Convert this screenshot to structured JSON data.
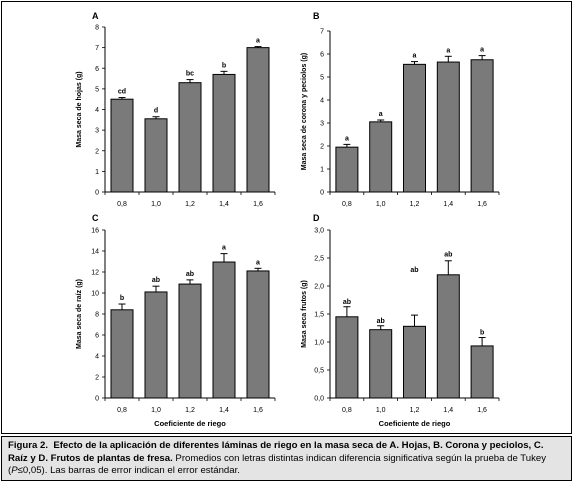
{
  "caption": {
    "label": "Figura 2.",
    "text_bold": "Efecto de la aplicación de diferentes láminas de riego en la masa seca de A. Hojas, B. Corona y peciolos, C. Raíz y D. Frutos de plantas de fresa.",
    "text_normal_1": "Promedios con letras distintas indican diferencia significativa según la prueba de Tukey (",
    "text_italic": "P",
    "text_normal_2": "≤0,05). Las barras de error indican el error estándar."
  },
  "chart_data": [
    {
      "panel": "A",
      "type": "bar",
      "categories": [
        "0,8",
        "1,0",
        "1,2",
        "1,4",
        "1,6"
      ],
      "values": [
        4.5,
        3.55,
        5.3,
        5.7,
        7.0
      ],
      "errors": [
        0.08,
        0.1,
        0.15,
        0.15,
        0.05
      ],
      "letters": [
        "cd",
        "d",
        "bc",
        "b",
        "a"
      ],
      "ylabel": "Masa seca de hojas (g)",
      "xlabel": "",
      "ylim": [
        0,
        8
      ],
      "yticks": [
        "0",
        "1",
        "2",
        "3",
        "4",
        "5",
        "6",
        "7",
        "8"
      ]
    },
    {
      "panel": "B",
      "type": "bar",
      "categories": [
        "0,8",
        "1,0",
        "1,2",
        "1,4",
        "1,6"
      ],
      "values": [
        1.95,
        3.05,
        5.55,
        5.65,
        5.75
      ],
      "errors": [
        0.12,
        0.08,
        0.12,
        0.25,
        0.18
      ],
      "letters": [
        "a",
        "a",
        "a",
        "a",
        "a"
      ],
      "ylabel": "Masa seca de corona y peciolos (g)",
      "xlabel": "",
      "ylim": [
        0,
        7
      ],
      "yticks": [
        "0",
        "1",
        "2",
        "3",
        "4",
        "5",
        "6",
        "7"
      ]
    },
    {
      "panel": "C",
      "type": "bar",
      "categories": [
        "0,8",
        "1,0",
        "1,2",
        "1,4",
        "1,6"
      ],
      "values": [
        8.4,
        10.1,
        10.85,
        12.95,
        12.1
      ],
      "errors": [
        0.55,
        0.55,
        0.4,
        0.8,
        0.25
      ],
      "letters": [
        "b",
        "ab",
        "ab",
        "a",
        "a"
      ],
      "ylabel": "Masa seca de raíz (g)",
      "xlabel": "Coeficiente de riego",
      "ylim": [
        0,
        16
      ],
      "yticks": [
        "0",
        "2",
        "4",
        "6",
        "8",
        "10",
        "12",
        "14",
        "16"
      ]
    },
    {
      "panel": "D",
      "type": "bar",
      "categories": [
        "0,8",
        "1,0",
        "1,2",
        "1,4",
        "1,6"
      ],
      "values": [
        1.45,
        1.22,
        1.28,
        2.2,
        0.93
      ],
      "errors": [
        0.18,
        0.07,
        0.2,
        0.25,
        0.15
      ],
      "letters": [
        "ab",
        "ab",
        "ab",
        "ab",
        "b"
      ],
      "letter_values": [
        1.68,
        1.34,
        2.25,
        2.53,
        1.13
      ],
      "ylabel": "Masa seca frutos (g)",
      "xlabel": "Coeficiente de riego",
      "ylim": [
        0,
        3
      ],
      "yticks": [
        "0,0",
        "0,5",
        "1,0",
        "1,5",
        "2,0",
        "2,5",
        "3,0"
      ]
    }
  ]
}
